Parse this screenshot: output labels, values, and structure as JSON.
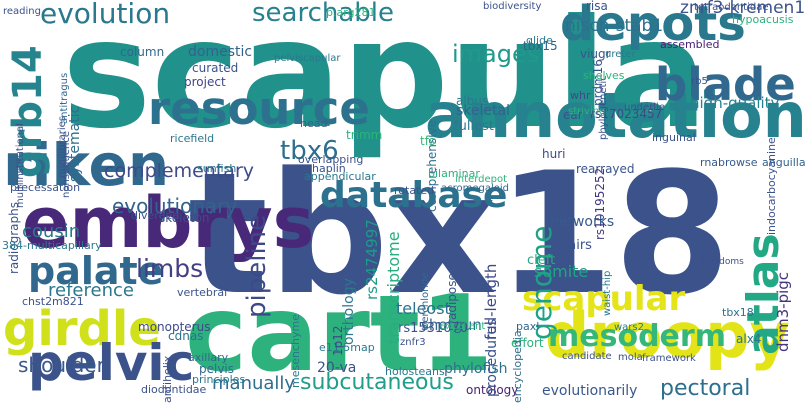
{
  "words": [
    {
      "text": "tbx18",
      "color": "#3b528b"
    },
    {
      "text": "scapula",
      "color": "#21918c"
    },
    {
      "text": "cart1",
      "color": "#2db27d"
    },
    {
      "text": "riken",
      "color": "#31688e"
    },
    {
      "text": "embrys",
      "color": "#482878"
    },
    {
      "text": "annotation",
      "color": "#26828e"
    },
    {
      "text": "droopy",
      "color": "#e2e418"
    },
    {
      "text": "resource",
      "color": "#2c728e"
    },
    {
      "text": "depots",
      "color": "#2a788e"
    },
    {
      "text": "blade",
      "color": "#31688e"
    },
    {
      "text": "girdle",
      "color": "#d0e11c"
    },
    {
      "text": "pelvic",
      "color": "#3b528b"
    },
    {
      "text": "grb14",
      "color": "#25848e"
    },
    {
      "text": "database",
      "color": "#2c728e"
    },
    {
      "text": "palate",
      "color": "#31688e"
    },
    {
      "text": "atlas",
      "color": "#22a884"
    },
    {
      "text": "scapular",
      "color": "#e5e419"
    },
    {
      "text": "genome",
      "color": "#1fa187"
    },
    {
      "text": "mesoderm",
      "color": "#35b779"
    },
    {
      "text": "pipeline",
      "color": "#3e4989"
    },
    {
      "text": "evolution",
      "color": "#2a788e"
    },
    {
      "text": "searchable",
      "color": "#26828e"
    },
    {
      "text": "subcutaneous",
      "color": "#1f9e89"
    },
    {
      "text": "limbs",
      "color": "#433e85"
    },
    {
      "text": "tbx6",
      "color": "#2e6e8e"
    },
    {
      "text": "images",
      "color": "#1f9a8a"
    },
    {
      "text": "pectoral",
      "color": "#2d708e"
    },
    {
      "text": "shoulder",
      "color": "#38598c"
    },
    {
      "text": "evolutionary",
      "color": "#33638d"
    },
    {
      "text": "complementary",
      "color": "#3e4a89"
    },
    {
      "text": "cousin",
      "color": "#2a788e"
    },
    {
      "text": "nisch-stab1",
      "color": "#2d708e"
    },
    {
      "text": "znrf3-kremen1",
      "color": "#3b528b"
    },
    {
      "text": "dnm3-pigc",
      "color": "#453581"
    },
    {
      "text": "somite",
      "color": "#20a486"
    },
    {
      "text": "reference",
      "color": "#2a788e"
    },
    {
      "text": "manually",
      "color": "#2e6e8e"
    },
    {
      "text": "transcriptome",
      "color": "#27ad81"
    },
    {
      "text": "skeletal",
      "color": "#33638d"
    },
    {
      "text": "full-length",
      "color": "#3e4989"
    },
    {
      "text": "high-quality",
      "color": "#26828e"
    },
    {
      "text": "evolutionarily",
      "color": "#38598c"
    },
    {
      "text": "ontology",
      "color": "#482173"
    },
    {
      "text": "teleost",
      "color": "#2c728e"
    },
    {
      "text": "shotgun",
      "color": "#306a8e"
    },
    {
      "text": "networks",
      "color": "#375b8d"
    },
    {
      "text": "cleft",
      "color": "#25ac82"
    },
    {
      "text": "domestic",
      "color": "#33638d"
    },
    {
      "text": "curated",
      "color": "#3a548c"
    },
    {
      "text": "column",
      "color": "#31688e"
    },
    {
      "text": "project",
      "color": "#404588"
    },
    {
      "text": "rs1531070",
      "color": "#3b528b"
    },
    {
      "text": "pairs",
      "color": "#3b528b"
    },
    {
      "text": "fullest",
      "color": "#2a788e"
    },
    {
      "text": "rs17023457",
      "color": "#3e4989"
    },
    {
      "text": "comprehensive",
      "color": "#2d708e"
    },
    {
      "text": "orthology",
      "color": "#2a788e"
    },
    {
      "text": "rs2474997",
      "color": "#1e9b8a"
    },
    {
      "text": "systematic",
      "color": "#2e6e8e"
    },
    {
      "text": "whr",
      "color": "#3e4a89"
    },
    {
      "text": "prdm16",
      "color": "#3a548c"
    },
    {
      "text": "tbx15",
      "color": "#33638d"
    },
    {
      "text": "risa",
      "color": "#3b528b"
    },
    {
      "text": "tfs",
      "color": "#37b878"
    },
    {
      "text": "huri",
      "color": "#3e4a89"
    },
    {
      "text": "alx4",
      "color": "#2c728e"
    },
    {
      "text": "pelvis",
      "color": "#31688e"
    },
    {
      "text": "cdnas",
      "color": "#2c728e"
    },
    {
      "text": "skeleton",
      "color": "#3e4989"
    },
    {
      "text": "rearrayed",
      "color": "#3a548c"
    },
    {
      "text": "procedures",
      "color": "#3b528b"
    },
    {
      "text": "effort",
      "color": "#2db27d"
    },
    {
      "text": "encyclopedia",
      "color": "#2e6e8e"
    },
    {
      "text": "adipose",
      "color": "#3b528b"
    },
    {
      "text": "phylofish",
      "color": "#2c728e"
    },
    {
      "text": "20-va",
      "color": "#3b528b"
    },
    {
      "text": "e11.5map",
      "color": "#2a788e"
    },
    {
      "text": "1p12",
      "color": "#3e4989"
    },
    {
      "text": "rs10195252",
      "color": "#453781"
    },
    {
      "text": "tbx18",
      "color": "#2d708e"
    },
    {
      "text": "glide",
      "color": "#2a788e"
    },
    {
      "text": "ear",
      "color": "#3b528b"
    },
    {
      "text": "albus",
      "color": "#2a788e"
    },
    {
      "text": "viugr",
      "color": "#3b528b"
    },
    {
      "text": "trimm",
      "color": "#2db27d"
    },
    {
      "text": "head",
      "color": "#33638d"
    },
    {
      "text": "ricefield",
      "color": "#2a788e"
    },
    {
      "text": "radiographs",
      "color": "#3b528b"
    },
    {
      "text": "rnabrowse",
      "color": "#38598c"
    },
    {
      "text": "anguilla",
      "color": "#33638d"
    },
    {
      "text": "paxl",
      "color": "#31688e"
    },
    {
      "text": "axillary",
      "color": "#31688e"
    },
    {
      "text": "principles",
      "color": "#2a788e"
    },
    {
      "text": "monopterus",
      "color": "#3e4989"
    },
    {
      "text": "diodontidae",
      "color": "#3b528b"
    },
    {
      "text": "antihelix",
      "color": "#3b528b"
    },
    {
      "text": "mesenchyme",
      "color": "#2a788e"
    },
    {
      "text": "holosteans",
      "color": "#2a788e"
    },
    {
      "text": "rotated",
      "color": "#3b528b"
    },
    {
      "text": "acromegaloid",
      "color": "#31688e"
    },
    {
      "text": "perchloride",
      "color": "#31688e"
    },
    {
      "text": "bilaminar",
      "color": "#2db27d"
    },
    {
      "text": "chst2m821",
      "color": "#3b528b"
    },
    {
      "text": "diverged",
      "color": "#3b528b"
    },
    {
      "text": "384-multicapillary",
      "color": "#2a788e"
    },
    {
      "text": "nonsequence",
      "color": "#3b528b"
    },
    {
      "text": "minilibraries",
      "color": "#3b528b"
    },
    {
      "text": "phylogenetic",
      "color": "#3b528b"
    },
    {
      "text": "underlie",
      "color": "#3b528b"
    },
    {
      "text": "indocarbocyanine",
      "color": "#3b528b"
    },
    {
      "text": "waist-hip",
      "color": "#2a788e"
    },
    {
      "text": "wars2",
      "color": "#2a788e"
    },
    {
      "text": "sunfish",
      "color": "#2a788e"
    },
    {
      "text": "excellent",
      "color": "#2db27d"
    },
    {
      "text": "vertebral",
      "color": "#3b528b"
    },
    {
      "text": "overlapping",
      "color": "#3b528b"
    },
    {
      "text": "haplin",
      "color": "#3b528b"
    },
    {
      "text": "appendicular",
      "color": "#2a788e"
    },
    {
      "text": "mola",
      "color": "#3b528b"
    },
    {
      "text": "znfr3",
      "color": "#3b528b"
    },
    {
      "text": "pelviscapular",
      "color": "#2a788e"
    },
    {
      "text": "antitragus",
      "color": "#31688e"
    },
    {
      "text": "multiinstitutional",
      "color": "#3b528b"
    },
    {
      "text": "striving",
      "color": "#2db27d"
    },
    {
      "text": "inguinal",
      "color": "#3b528b"
    },
    {
      "text": "shelves",
      "color": "#2db27d"
    },
    {
      "text": "tetraodontidae",
      "color": "#3b528b"
    },
    {
      "text": "assembled",
      "color": "#482173"
    },
    {
      "text": "rb5",
      "color": "#3b528b"
    },
    {
      "text": "hypoacusis",
      "color": "#2db27d"
    },
    {
      "text": "ureter",
      "color": "#2a788e"
    },
    {
      "text": "interdepot",
      "color": "#2db27d"
    },
    {
      "text": "candidate",
      "color": "#3b528b"
    },
    {
      "text": "framework",
      "color": "#3b528b"
    },
    {
      "text": "reading",
      "color": "#3b528b"
    },
    {
      "text": "biodiversity",
      "color": "#3b528b"
    },
    {
      "text": "p.arg281",
      "color": "#2db27d"
    },
    {
      "text": "precessation",
      "color": "#3b528b"
    },
    {
      "text": "kingdoms",
      "color": "#3b528b"
    }
  ]
}
